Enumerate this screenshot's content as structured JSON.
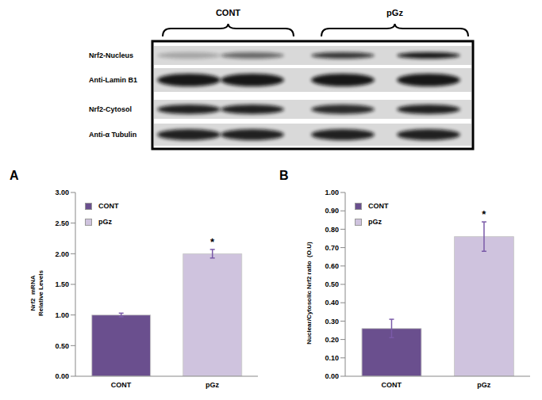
{
  "chart_data": [
    {
      "type": "bar",
      "title": "A",
      "ylabel": "Nrf2  mRNA\nRelative Levels",
      "categories": [
        "CONT",
        "pGz"
      ],
      "values": [
        1.0,
        2.0
      ],
      "errors": [
        0.03,
        0.07
      ],
      "colors": [
        "#6a4f8e",
        "#cfc3de"
      ],
      "ylim": [
        0,
        3
      ],
      "yticks": [
        {
          "value": 0,
          "label": "0.00"
        },
        {
          "value": 0.5,
          "label": "0.50"
        },
        {
          "value": 1,
          "label": "1.00"
        },
        {
          "value": 1.5,
          "label": "1.50"
        },
        {
          "value": 2,
          "label": "2.00"
        },
        {
          "value": 2.5,
          "label": "2.50"
        },
        {
          "value": 3,
          "label": "3.00"
        }
      ],
      "legend": "top-left",
      "annotations": [
        {
          "text": "*",
          "category": "pGz"
        }
      ]
    },
    {
      "type": "bar",
      "title": "B",
      "ylabel": "Nuclear/Cytosolic Nrf2 ratio  (O.U)",
      "categories": [
        "CONT",
        "pGz"
      ],
      "values": [
        0.26,
        0.76
      ],
      "errors": [
        0.05,
        0.08
      ],
      "colors": [
        "#6a4f8e",
        "#cfc3de"
      ],
      "ylim": [
        0,
        1
      ],
      "yticks": [
        {
          "value": 0,
          "label": "0.00"
        },
        {
          "value": 0.1,
          "label": "0.10"
        },
        {
          "value": 0.2,
          "label": "0.20"
        },
        {
          "value": 0.3,
          "label": "0.30"
        },
        {
          "value": 0.4,
          "label": "0.40"
        },
        {
          "value": 0.5,
          "label": "0.50"
        },
        {
          "value": 0.6,
          "label": "0.60"
        },
        {
          "value": 0.7,
          "label": "0.70"
        },
        {
          "value": 0.8,
          "label": "0.80"
        },
        {
          "value": 0.9,
          "label": "0.90"
        },
        {
          "value": 1,
          "label": "1.00"
        }
      ],
      "legend": "top-left",
      "annotations": [
        {
          "text": "*",
          "category": "pGz"
        }
      ]
    }
  ],
  "blot": {
    "groups": [
      "CONT",
      "pGz"
    ],
    "rows": [
      "Nrf2-Nucleus",
      "Anti-Lamin B1",
      "Nrf2-Cytosol",
      "Anti-α Tubulin"
    ]
  }
}
